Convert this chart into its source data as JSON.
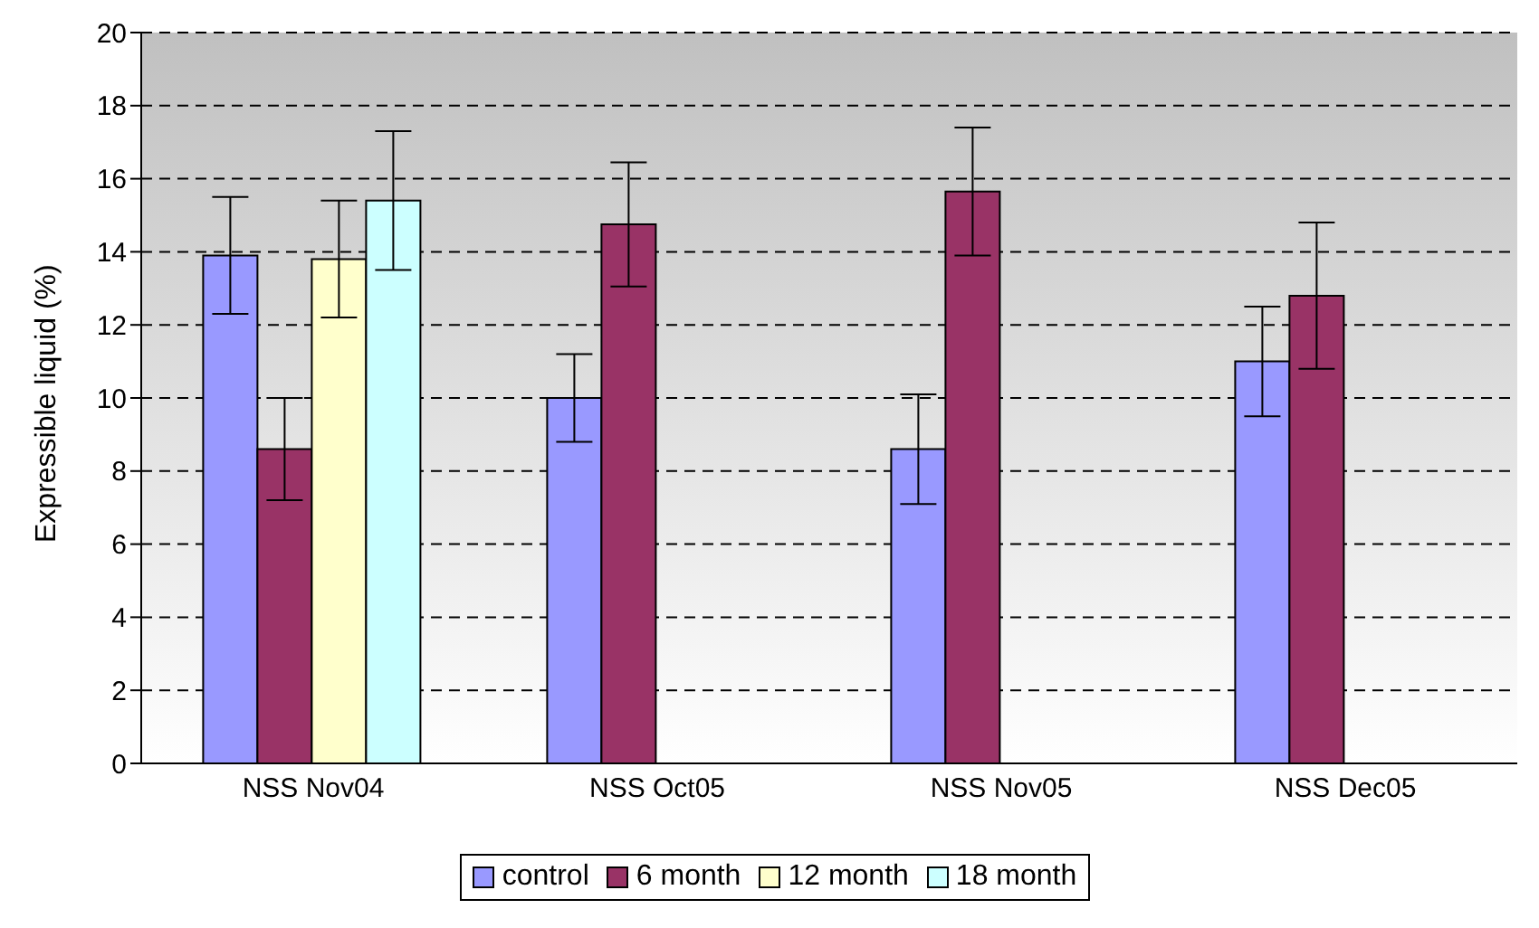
{
  "chart_data": {
    "type": "bar",
    "ylabel": "Expressible liquid (%)",
    "categories": [
      "NSS Nov04",
      "NSS Oct05",
      "NSS Nov05",
      "NSS Dec05"
    ],
    "series": [
      {
        "name": "control",
        "color": "#9999ff",
        "values": [
          13.9,
          10.0,
          8.6,
          11.0
        ],
        "errors": [
          1.6,
          1.2,
          1.5,
          1.5
        ]
      },
      {
        "name": "6 month",
        "color": "#993366",
        "values": [
          8.6,
          14.75,
          15.65,
          12.8
        ],
        "errors": [
          1.4,
          1.7,
          1.75,
          2.0
        ]
      },
      {
        "name": "12 month",
        "color": "#ffffcc",
        "values": [
          13.8,
          null,
          null,
          null
        ],
        "errors": [
          1.6,
          null,
          null,
          null
        ]
      },
      {
        "name": "18 month",
        "color": "#ccffff",
        "values": [
          15.4,
          null,
          null,
          null
        ],
        "errors": [
          1.9,
          null,
          null,
          null
        ]
      }
    ],
    "ylim": [
      0,
      20
    ],
    "yticks": [
      0,
      2,
      4,
      6,
      8,
      10,
      12,
      14,
      16,
      18,
      20
    ],
    "grid": "y",
    "legend": "bottom"
  }
}
